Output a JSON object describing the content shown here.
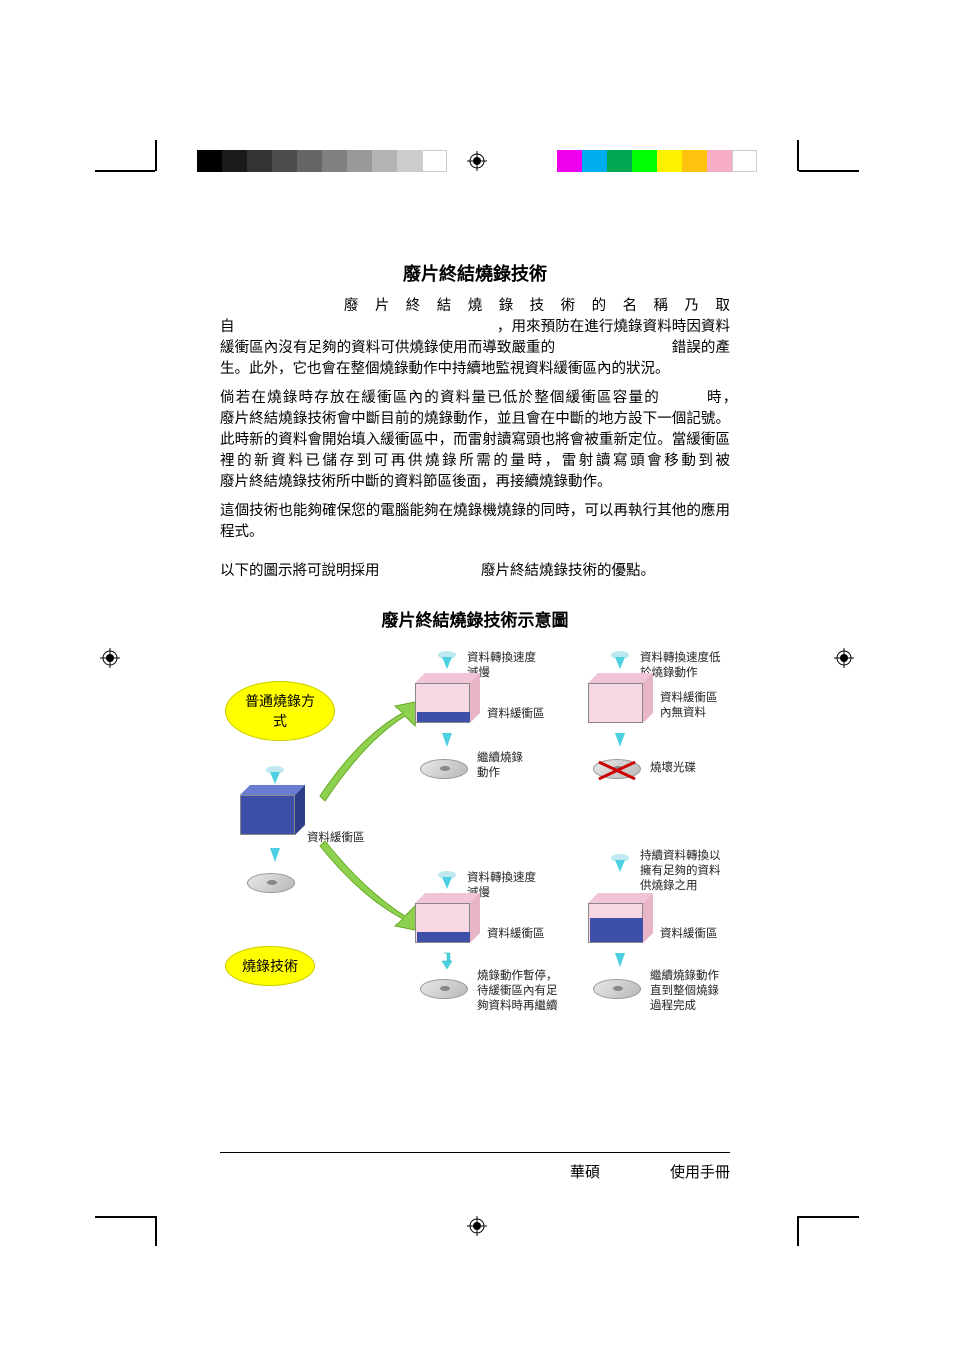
{
  "title1": "廢片終結燒錄技術",
  "para1": "　　　　廢片終結燒錄技術的名稱乃取自　　　　　　　　　　　　　　　　　　，用來預防在進行燒錄資料時因資料緩衝區內沒有足夠的資料可供燒錄使用而導致嚴重的　　　　　　　　錯誤的產生。此外，它也會在整個燒錄動作中持續地監視資料緩衝區內的狀況。",
  "para2": "倘若在燒錄時存放在緩衝區內的資料量已低於整個緩衝區容量的　　　時，　　　　　　廢片終結燒錄技術會中斷目前的燒錄動作，並且會在中斷的地方設下一個記號。此時新的資料會開始填入緩衝區中，而雷射讀寫頭也將會被重新定位。當緩衝區裡的新資料已儲存到可再供燒錄所需的量時，雷射讀寫頭會移動到被　　　　　　　廢片終結燒錄技術所中斷的資料節區後面，再接續燒錄動作。",
  "para3": "這個技術也能夠確保您的電腦能夠在燒錄機燒錄的同時，可以再執行其他的應用程式。",
  "para4": "以下的圖示將可說明採用　　　　　　　廢片終結燒錄技術的優點。",
  "title2": "廢片終結燒錄技術示意圖",
  "diagram": {
    "cloud1": "普通燒錄方式",
    "cloud2": "燒錄技術",
    "buffer_label": "資料緩衝區",
    "captions": {
      "c1": "資料轉換速度\n減慢",
      "c2": "資料緩衝區",
      "c3": "繼續燒錄\n動作",
      "c4": "資料轉換速度低\n於燒錄動作",
      "c5": "資料緩衝區\n內無資料",
      "c6": "燒壞光碟",
      "c7": "資料轉換速度\n減慢",
      "c8": "資料緩衝區",
      "c9": "燒錄動作暫停，\n待緩衝區內有足\n夠資料時再繼續",
      "c10": "持續資料轉換以\n擁有足夠的資料\n供燒錄之用",
      "c11": "資料緩衝區",
      "c12": "繼續燒錄動作\n直到整個燒錄\n過程完成"
    },
    "colors": {
      "yellow": "#ffff00",
      "blue_dark": "#3d4fa8",
      "blue_mid": "#6b7dd1",
      "pink": "#f8d7e5",
      "cyan": "#4dd0e1",
      "green": "#66cc33",
      "red": "#cc0000",
      "disc": "#cccccc"
    }
  },
  "gray_swatches": [
    "#000000",
    "#1a1a1a",
    "#333333",
    "#4d4d4d",
    "#666666",
    "#808080",
    "#999999",
    "#b3b3b3",
    "#cccccc",
    "#ffffff"
  ],
  "color_swatches": [
    "#ee00ee",
    "#00aeef",
    "#00a651",
    "#00ff00",
    "#fff200",
    "#ffc20e",
    "#f7adc8",
    "#ffffff"
  ],
  "footer": {
    "left": "華碩",
    "right": "使用手冊"
  }
}
